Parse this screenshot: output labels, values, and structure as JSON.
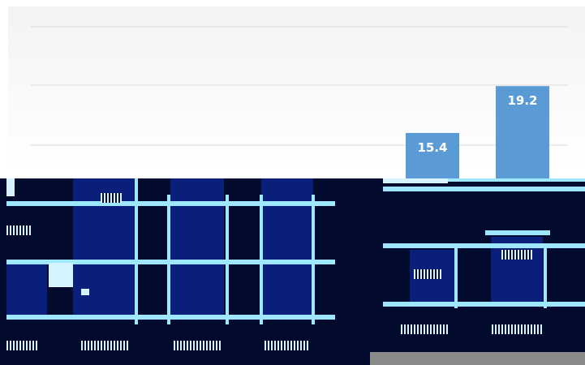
{
  "chart_data": {
    "type": "bar",
    "series": [
      {
        "values": [
          15.4,
          19.2
        ]
      }
    ],
    "data_labels": [
      "15.4",
      "19.2"
    ],
    "grid": true,
    "colors": {
      "bar": "#5b9bd5",
      "gridline": "#d9d9d9",
      "label_text": "#ffffff"
    }
  }
}
